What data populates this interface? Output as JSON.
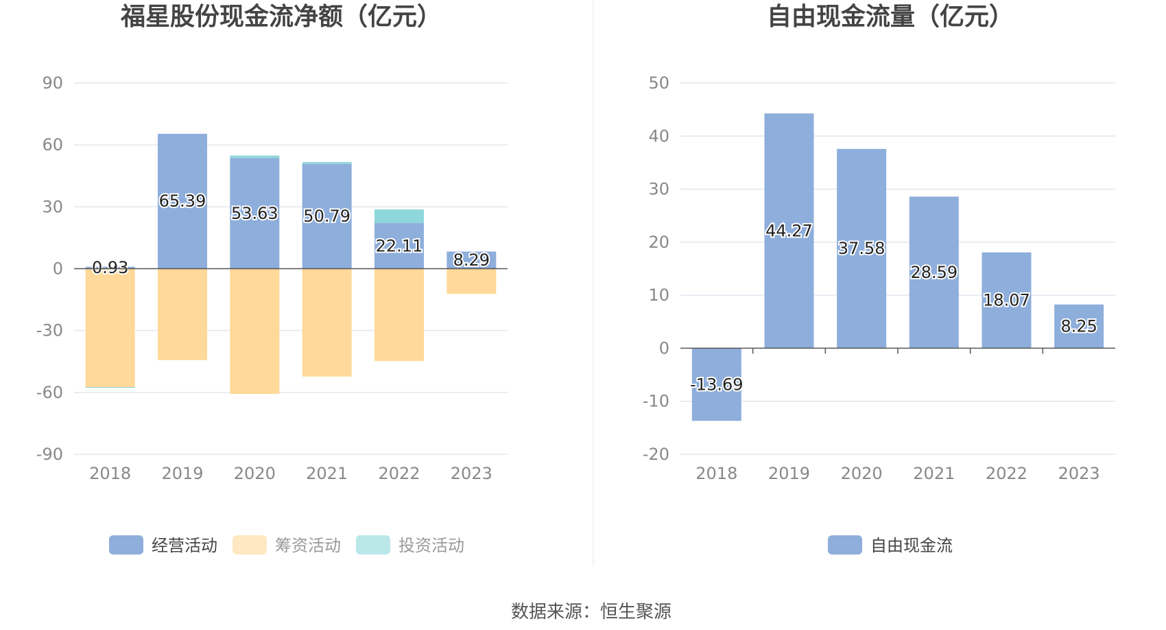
{
  "source": "数据来源：恒生聚源",
  "chart_data": [
    {
      "type": "bar",
      "stacked": true,
      "title": "福星股份现金流净额（亿元）",
      "categories": [
        "2018",
        "2019",
        "2020",
        "2021",
        "2022",
        "2023"
      ],
      "ylim": [
        -90,
        90
      ],
      "yticks": [
        90,
        60,
        30,
        0,
        -30,
        -60,
        -90
      ],
      "grid": true,
      "legend_position": "bottom",
      "series": [
        {
          "name": "经营活动",
          "color": "#8eaedb",
          "values": [
            0.93,
            65.39,
            53.63,
            50.79,
            22.11,
            8.29
          ],
          "labels": [
            "0.93",
            "65.39",
            "53.63",
            "50.79",
            "22.11",
            "8.29"
          ]
        },
        {
          "name": "筹资活动",
          "color": "#ffd999",
          "values": [
            -57.4,
            -44.3,
            -60.7,
            -52.3,
            -44.8,
            -12.2
          ]
        },
        {
          "name": "投资活动",
          "color": "#8ed7db",
          "values": [
            -0.3,
            0.0,
            1.2,
            0.9,
            6.6,
            0.0
          ]
        }
      ]
    },
    {
      "type": "bar",
      "title": "自由现金流量（亿元）",
      "categories": [
        "2018",
        "2019",
        "2020",
        "2021",
        "2022",
        "2023"
      ],
      "ylim": [
        -20,
        50
      ],
      "yticks": [
        50,
        40,
        30,
        20,
        10,
        0,
        -10,
        -20
      ],
      "grid": true,
      "legend_position": "bottom",
      "series": [
        {
          "name": "自由现金流",
          "color": "#8eaedb",
          "values": [
            -13.69,
            44.27,
            37.58,
            28.59,
            18.07,
            8.25
          ],
          "labels": [
            "-13.69",
            "44.27",
            "37.58",
            "28.59",
            "18.07",
            "8.25"
          ]
        }
      ]
    }
  ]
}
